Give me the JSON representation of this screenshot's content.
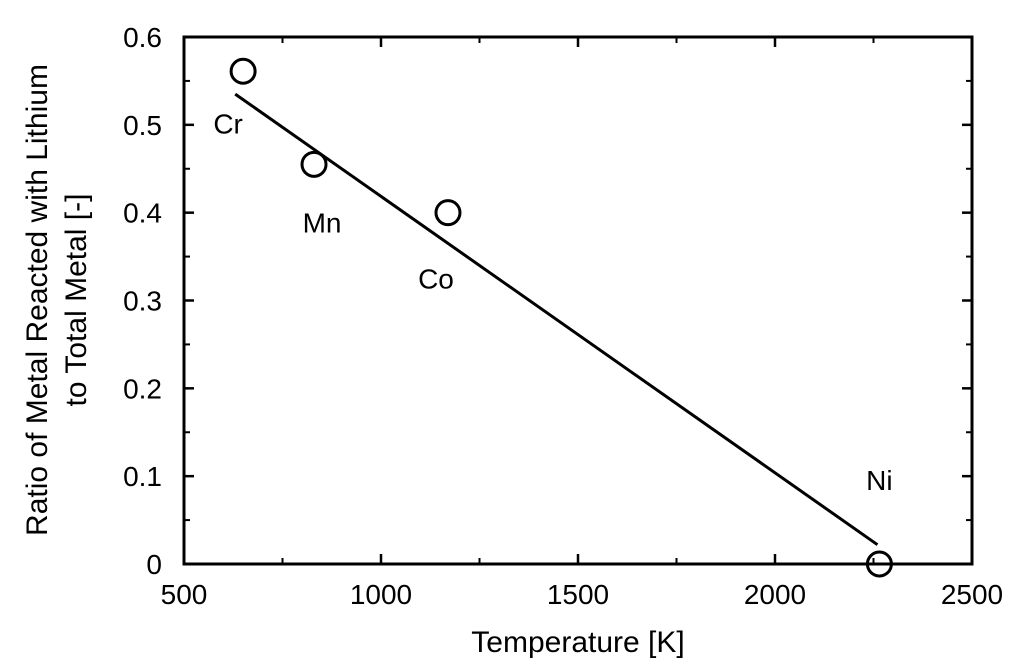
{
  "chart_data": {
    "type": "scatter",
    "title": "",
    "xlabel": "Temperature [K]",
    "ylabel_line1": "Ratio of Metal Reacted with Lithium",
    "ylabel_line2": "to Total Metal [-]",
    "xlim": [
      500,
      2500
    ],
    "ylim": [
      0,
      0.6
    ],
    "x_ticks": [
      500,
      1000,
      1500,
      2000,
      2500
    ],
    "x_tick_labels": [
      "500",
      "1000",
      "1500",
      "2000",
      "2500"
    ],
    "y_ticks": [
      0,
      0.1,
      0.2,
      0.3,
      0.4,
      0.5,
      0.6
    ],
    "y_tick_labels": [
      "0",
      "0.1",
      "0.2",
      "0.3",
      "0.4",
      "0.5",
      "0.6"
    ],
    "grid": false,
    "legend": "none",
    "points": [
      {
        "label": "Cr",
        "x": 650,
        "y": 0.561
      },
      {
        "label": "Mn",
        "x": 830,
        "y": 0.455
      },
      {
        "label": "Co",
        "x": 1170,
        "y": 0.4
      },
      {
        "label": "Ni",
        "x": 2265,
        "y": 0.0
      }
    ],
    "fit_line": {
      "x": [
        630,
        2260
      ],
      "y": [
        0.535,
        0.022
      ]
    },
    "marker": "open-circle",
    "color": "#000000"
  }
}
